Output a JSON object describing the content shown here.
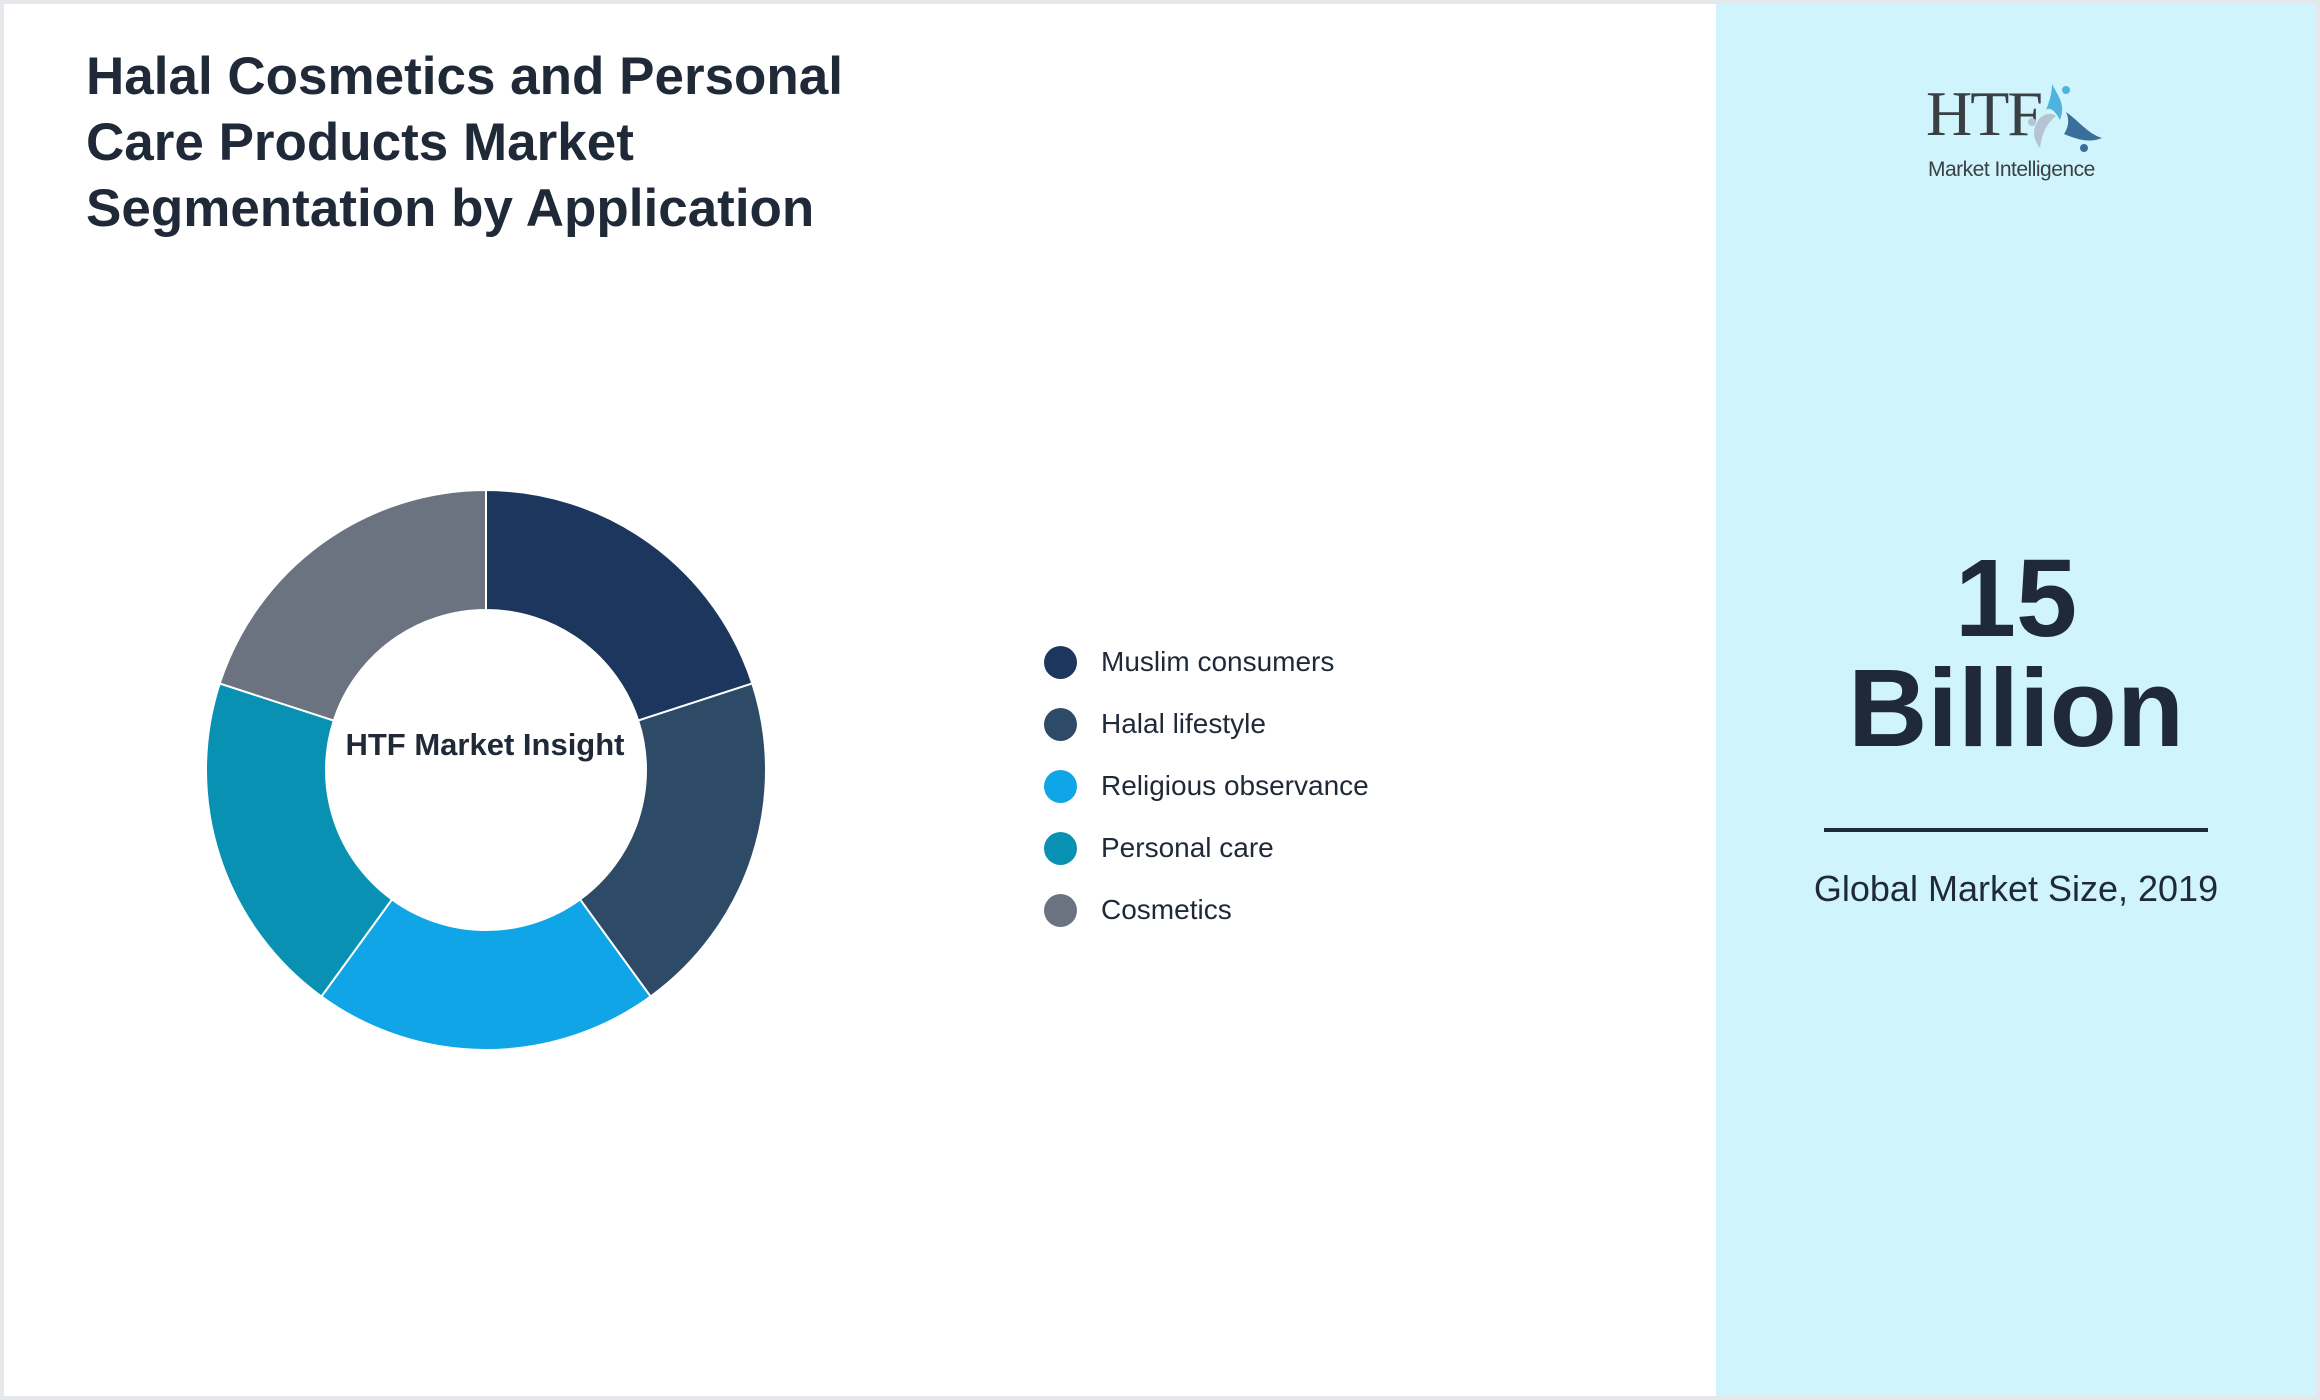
{
  "title": "Halal Cosmetics and Personal Care Products Market Segmentation by Application",
  "donut_center_label": "HTF Market Insight",
  "logo": {
    "main_text": "HTF",
    "sub_text": "Market Intelligence",
    "icon": "htf-people-circle-logo-icon"
  },
  "highlight": {
    "value": "15",
    "unit": "Billion",
    "caption": "Global Market Size, 2019"
  },
  "colors": {
    "title": "#1f2937",
    "panel_bg": "#cff4fc",
    "border": "#e5e7eb"
  },
  "chart_data": {
    "type": "pie",
    "subtype": "donut",
    "title": "Halal Cosmetics and Personal Care Products Market Segmentation by Application",
    "center_label": "HTF Market Insight",
    "categories": [
      "Muslim consumers",
      "Halal lifestyle",
      "Religious observance",
      "Personal care",
      "Cosmetics"
    ],
    "values": [
      20,
      20,
      20,
      20,
      20
    ],
    "colors": [
      "#1c365d",
      "#2d4a66",
      "#10a5e6",
      "#0891b2",
      "#6b7280"
    ],
    "legend_position": "right",
    "start_angle": "12 o'clock, clockwise"
  },
  "legend": [
    {
      "label": "Muslim consumers",
      "color": "#1c365d"
    },
    {
      "label": "Halal lifestyle",
      "color": "#2d4a66"
    },
    {
      "label": "Religious observance",
      "color": "#10a5e6"
    },
    {
      "label": "Personal care",
      "color": "#0891b2"
    },
    {
      "label": "Cosmetics",
      "color": "#6b7280"
    }
  ]
}
